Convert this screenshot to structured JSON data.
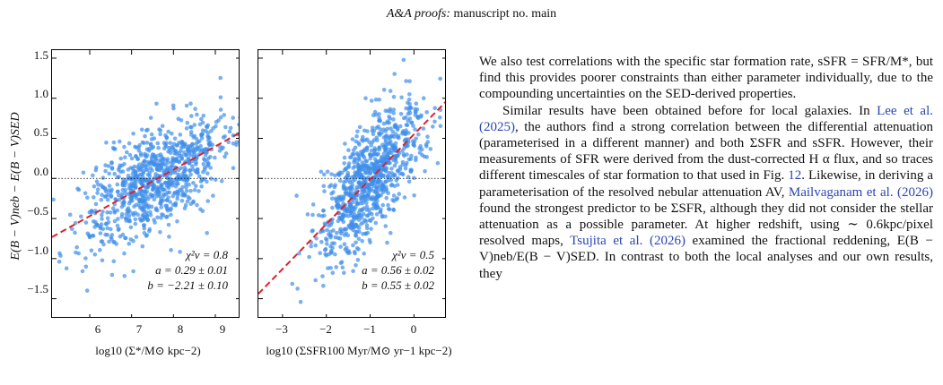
{
  "header": {
    "prefix": "A&A proofs:",
    "suffix": "manuscript no. main"
  },
  "figure": {
    "ylabel": "E(B − V)neb − E(B − V)SED",
    "yticks": [
      "1.5",
      "1.0",
      "0.5",
      "0.0",
      "−0.5",
      "−1.0",
      "−1.5"
    ],
    "left": {
      "xlabel": "log10 (Σ*/M⊙ kpc−2)",
      "xticks": [
        "6",
        "7",
        "8",
        "9"
      ],
      "chi": "χ²ν = 0.8",
      "a": "a = 0.29 ± 0.01",
      "b": "b = −2.21 ± 0.10"
    },
    "right": {
      "xlabel": "log10 (ΣSFR100 Myr/M⊙ yr−1 kpc−2)",
      "xticks": [
        "−3",
        "−2",
        "−1",
        "0"
      ],
      "chi": "χ²ν = 0.5",
      "a": "a = 0.56 ± 0.02",
      "b": "b = 0.55 ± 0.02"
    }
  },
  "chart_data": [
    {
      "type": "scatter",
      "xlim": [
        5.1,
        9.6
      ],
      "ylim": [
        -1.75,
        1.6
      ],
      "fit": {
        "slope": 0.29,
        "intercept": -2.21
      },
      "reference_line": 0.0,
      "color_points": "#3f8fea",
      "color_fit": "#e0202a"
    },
    {
      "type": "scatter",
      "xlim": [
        -3.55,
        0.75
      ],
      "ylim": [
        -1.75,
        1.6
      ],
      "fit": {
        "slope": 0.56,
        "intercept": 0.55
      },
      "reference_line": 0.0,
      "color_points": "#3f8fea",
      "color_fit": "#e0202a"
    }
  ],
  "body": {
    "p1": "We also test correlations with the specific star formation rate, sSFR = SFR/M*, but find this provides poorer constraints than either parameter individually, due to the compounding uncertainties on the SED-derived properties.",
    "p2a": "Similar results have been obtained before for local galaxies. In ",
    "cite1": "Lee et al. (2025)",
    "p2b": ", the authors find a strong correlation between the differential attenuation (parameterised in a different manner) and both ΣSFR and sSFR. However, their measurements of SFR were derived from the dust-corrected H α flux, and so traces different timescales of star formation to that used in Fig. ",
    "cite2": "12",
    "p2c": ". Likewise, in deriving a parameterisation of the resolved nebular attenuation AV, ",
    "cite3": "Mailvaganam et al. (2026)",
    "p2d": " found the strongest predictor to be ΣSFR, although they did not consider the stellar attenuation as a possible parameter. At higher redshift, using ∼ 0.6kpc/pixel resolved maps, ",
    "cite4": "Tsujita et al. (2026)",
    "p2e": " examined the fractional reddening, E(B − V)neb/E(B − V)SED. In contrast to both the local analyses and our own results, they"
  }
}
